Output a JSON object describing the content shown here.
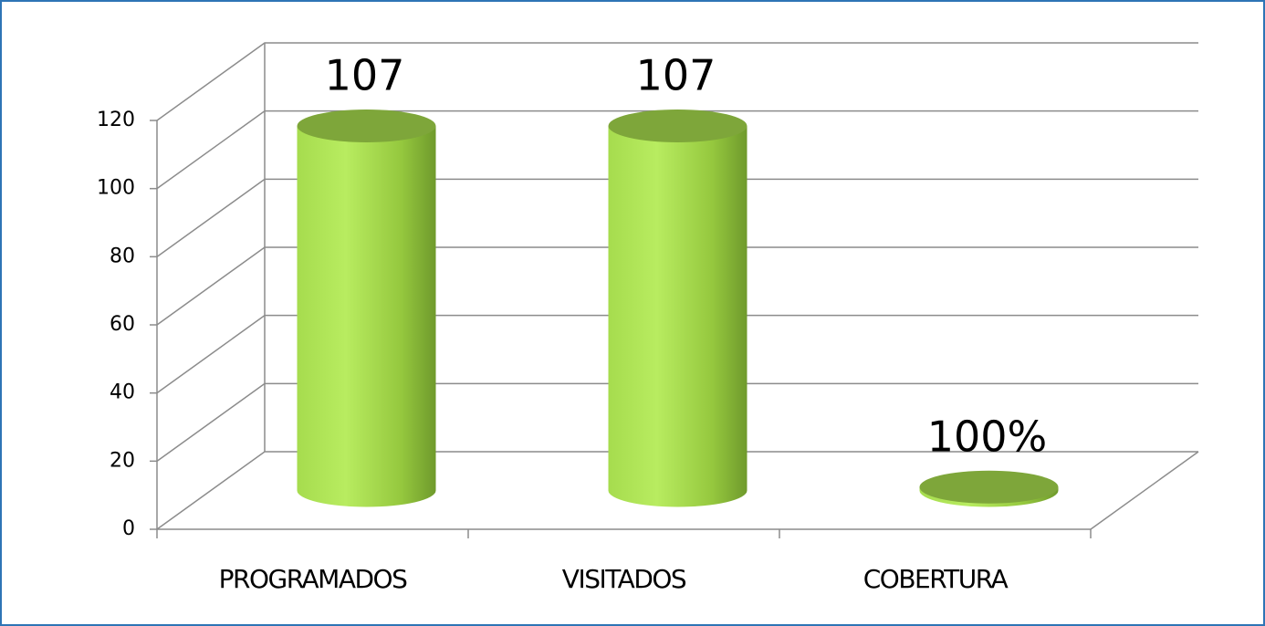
{
  "chart_data": {
    "type": "bar3d",
    "categories": [
      "PROGRAMADOS",
      "VISITADOS",
      "COBERTURA"
    ],
    "values": [
      107,
      107,
      1
    ],
    "value_labels": [
      "107",
      "107",
      "100%"
    ],
    "color": "#9ccc45",
    "ylim": [
      0,
      120
    ],
    "yticks": [
      0,
      20,
      40,
      60,
      80,
      100,
      120
    ],
    "grid": true
  }
}
